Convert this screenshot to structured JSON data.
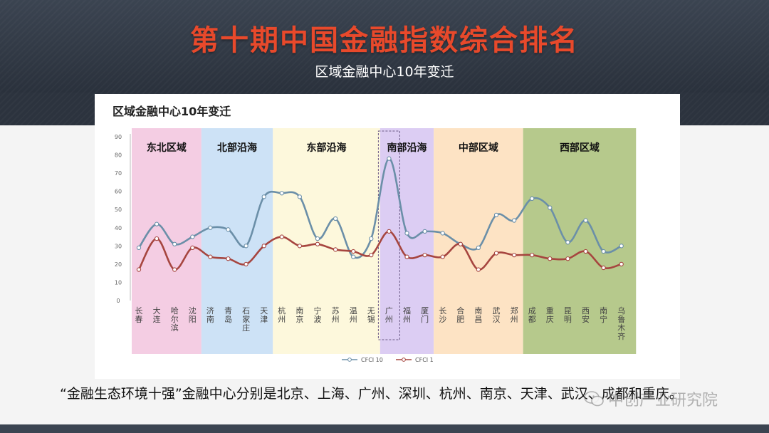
{
  "header": {
    "title": "第十期中国金融指数综合排名",
    "subtitle": "区域金融中心10年变迁"
  },
  "panel": {
    "title": "区域金融中心10年变迁"
  },
  "caption": "“金融生态环境十强”金融中心分别是北京、上海、广州、深圳、杭州、南京、天津、武汉、成都和重庆。",
  "watermark": {
    "text": "中创产业研究院",
    "icon": "wechat-icon"
  },
  "chart_data": {
    "type": "line",
    "categories": [
      "长春",
      "大连",
      "哈尔滨",
      "沈阳",
      "济南",
      "青岛",
      "石家庄",
      "天津",
      "杭州",
      "南京",
      "宁波",
      "苏州",
      "温州",
      "无锡",
      "广州",
      "福州",
      "厦门",
      "长沙",
      "合肥",
      "南昌",
      "武汉",
      "郑州",
      "成都",
      "重庆",
      "昆明",
      "西安",
      "南宁",
      "乌鲁木齐"
    ],
    "ylim": [
      0,
      90
    ],
    "yticks": [
      0,
      10,
      20,
      30,
      40,
      50,
      60,
      70,
      80,
      90
    ],
    "grid": false,
    "legend_position": "bottom",
    "series": [
      {
        "name": "CFCI 10",
        "color": "#6b8fa8",
        "values": [
          29,
          42,
          31,
          35,
          40,
          39,
          30,
          57,
          59,
          57,
          34,
          45,
          24,
          34,
          78,
          37,
          38,
          37,
          31,
          29,
          47,
          44,
          56,
          51,
          32,
          44,
          27,
          30
        ]
      },
      {
        "name": "CFCI 1",
        "color": "#a6453f",
        "values": [
          17,
          34,
          17,
          29,
          24,
          23,
          20,
          30,
          35,
          30,
          31,
          28,
          27,
          25,
          38,
          24,
          25,
          24,
          31,
          17,
          26,
          25,
          25,
          23,
          23,
          27,
          18,
          20
        ]
      }
    ],
    "regions": [
      {
        "label": "东北区域",
        "start": 0,
        "end": 3,
        "color": "#f4cde3"
      },
      {
        "label": "北部沿海",
        "start": 4,
        "end": 7,
        "color": "#cde2f6"
      },
      {
        "label": "东部沿海",
        "start": 8,
        "end": 13,
        "color": "#fdf8dc"
      },
      {
        "label": "南部沿海",
        "start": 14,
        "end": 16,
        "color": "#dccdf3"
      },
      {
        "label": "中部区域",
        "start": 17,
        "end": 21,
        "color": "#fde3c4"
      },
      {
        "label": "西部区域",
        "start": 22,
        "end": 27,
        "color": "#b6c98c"
      }
    ],
    "highlight": {
      "category": "广州",
      "style": "dashed-box"
    }
  }
}
